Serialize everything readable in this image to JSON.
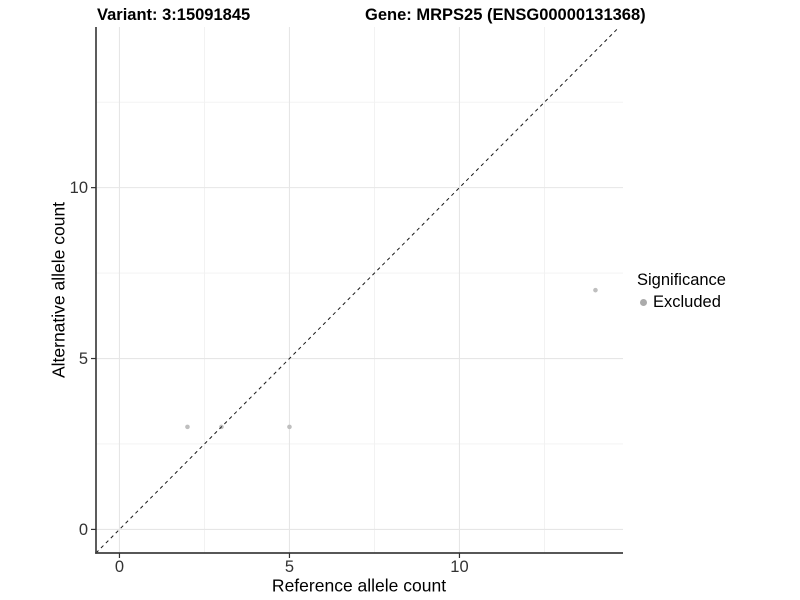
{
  "header": {
    "variant_title": "Variant: 3:15091845",
    "gene_title": "Gene: MRPS25 (ENSG00000131368)"
  },
  "chart_data": {
    "type": "scatter",
    "xlabel": "Reference allele count",
    "ylabel": "Alternative allele count",
    "xlim": [
      -0.69,
      14.81
    ],
    "ylim": [
      -0.69,
      14.7
    ],
    "x_ticks": [
      0,
      5,
      10
    ],
    "y_ticks": [
      0,
      5,
      10
    ],
    "x_minor_ticks": [
      2.5,
      7.5,
      12.5
    ],
    "y_minor_ticks": [
      2.5,
      7.5,
      12.5
    ],
    "grid": "major and minor, light grey on white",
    "identity_line": {
      "style": "dashed",
      "slope": 1,
      "intercept": 0,
      "from": -0.69,
      "to": 14.7
    },
    "series": [
      {
        "name": "Excluded",
        "color": "#bfbfbf",
        "points": [
          {
            "x": 2,
            "y": 3
          },
          {
            "x": 3,
            "y": 3
          },
          {
            "x": 5,
            "y": 3
          },
          {
            "x": 14,
            "y": 7
          }
        ]
      }
    ],
    "legend": {
      "title": "Significance",
      "position": "right",
      "items": [
        {
          "label": "Excluded",
          "color": "#ababab"
        }
      ]
    }
  },
  "colors": {
    "background": "#ffffff",
    "grid_major": "#e6e6e6",
    "grid_minor": "#f1f1f1",
    "axis_line": "#3f3f3f",
    "tick_mark": "#333333",
    "tick_text": "#333333",
    "identity_line": "#1a1a1a",
    "point": "#bfbfbf"
  }
}
